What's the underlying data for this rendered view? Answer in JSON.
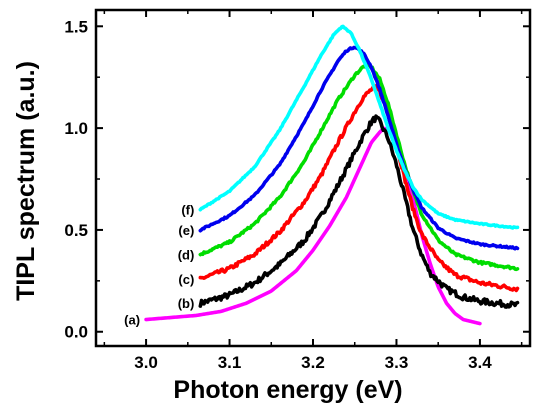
{
  "chart_data": {
    "type": "line",
    "title": "",
    "xlabel": "Photon energy (eV)",
    "ylabel": "TIPL spectrum (a.u.)",
    "xlim": [
      2.94,
      3.46
    ],
    "ylim": [
      -0.07,
      1.58
    ],
    "xticks": [
      3.0,
      3.1,
      3.2,
      3.3,
      3.4
    ],
    "xtick_labels": [
      "3.0",
      "3.1",
      "3.2",
      "3.3",
      "3.4"
    ],
    "yticks": [
      0.0,
      0.5,
      1.0,
      1.5
    ],
    "ytick_labels": [
      "0.0",
      "0.5",
      "1.0",
      "1.5"
    ],
    "grid": false,
    "series": [
      {
        "label": "(a)",
        "color": "#ff00ff",
        "noise": 0.0,
        "x": [
          3.0,
          3.03,
          3.06,
          3.09,
          3.12,
          3.15,
          3.18,
          3.2,
          3.22,
          3.24,
          3.25,
          3.26,
          3.27,
          3.28,
          3.285,
          3.29,
          3.3,
          3.31,
          3.32,
          3.33,
          3.34,
          3.35,
          3.36,
          3.37,
          3.38,
          3.39,
          3.4
        ],
        "y": [
          0.06,
          0.07,
          0.08,
          0.1,
          0.14,
          0.2,
          0.3,
          0.4,
          0.52,
          0.66,
          0.75,
          0.84,
          0.93,
          0.98,
          1.0,
          0.99,
          0.93,
          0.8,
          0.65,
          0.48,
          0.34,
          0.22,
          0.14,
          0.09,
          0.06,
          0.05,
          0.04
        ]
      },
      {
        "label": "(b)",
        "color": "#000000",
        "noise": 0.014,
        "x": [
          3.065,
          3.1,
          3.13,
          3.16,
          3.19,
          3.21,
          3.23,
          3.25,
          3.26,
          3.27,
          3.275,
          3.28,
          3.29,
          3.3,
          3.31,
          3.32,
          3.33,
          3.34,
          3.36,
          3.38,
          3.4,
          3.42,
          3.445
        ],
        "y": [
          0.14,
          0.18,
          0.24,
          0.33,
          0.45,
          0.57,
          0.72,
          0.88,
          0.96,
          1.03,
          1.05,
          1.03,
          0.95,
          0.82,
          0.66,
          0.5,
          0.38,
          0.29,
          0.21,
          0.17,
          0.15,
          0.14,
          0.13
        ]
      },
      {
        "label": "(c)",
        "color": "#ff0000",
        "noise": 0.01,
        "x": [
          3.065,
          3.1,
          3.13,
          3.16,
          3.19,
          3.21,
          3.23,
          3.25,
          3.26,
          3.27,
          3.275,
          3.28,
          3.29,
          3.3,
          3.31,
          3.32,
          3.33,
          3.35,
          3.37,
          3.4,
          3.445
        ],
        "y": [
          0.26,
          0.31,
          0.38,
          0.49,
          0.64,
          0.77,
          0.93,
          1.08,
          1.15,
          1.19,
          1.2,
          1.18,
          1.08,
          0.92,
          0.75,
          0.6,
          0.48,
          0.35,
          0.28,
          0.24,
          0.21
        ]
      },
      {
        "label": "(d)",
        "color": "#00dd00",
        "noise": 0.006,
        "x": [
          3.065,
          3.1,
          3.13,
          3.16,
          3.19,
          3.21,
          3.23,
          3.25,
          3.26,
          3.265,
          3.27,
          3.28,
          3.29,
          3.3,
          3.31,
          3.32,
          3.33,
          3.35,
          3.37,
          3.4,
          3.445
        ],
        "y": [
          0.38,
          0.44,
          0.53,
          0.66,
          0.84,
          0.99,
          1.14,
          1.26,
          1.3,
          1.31,
          1.3,
          1.24,
          1.12,
          0.97,
          0.82,
          0.69,
          0.58,
          0.45,
          0.38,
          0.34,
          0.31
        ]
      },
      {
        "label": "(e)",
        "color": "#0000ee",
        "noise": 0.004,
        "x": [
          3.065,
          3.1,
          3.13,
          3.16,
          3.19,
          3.21,
          3.23,
          3.24,
          3.25,
          3.26,
          3.27,
          3.28,
          3.29,
          3.3,
          3.31,
          3.32,
          3.33,
          3.35,
          3.37,
          3.4,
          3.445
        ],
        "y": [
          0.5,
          0.57,
          0.67,
          0.82,
          1.03,
          1.19,
          1.33,
          1.38,
          1.4,
          1.37,
          1.3,
          1.19,
          1.06,
          0.92,
          0.8,
          0.7,
          0.61,
          0.51,
          0.46,
          0.43,
          0.41
        ]
      },
      {
        "label": "(f)",
        "color": "#00ffff",
        "noise": 0.003,
        "x": [
          3.065,
          3.1,
          3.13,
          3.16,
          3.19,
          3.21,
          3.225,
          3.235,
          3.245,
          3.255,
          3.27,
          3.28,
          3.29,
          3.3,
          3.31,
          3.32,
          3.33,
          3.35,
          3.37,
          3.4,
          3.445
        ],
        "y": [
          0.6,
          0.69,
          0.81,
          0.99,
          1.21,
          1.36,
          1.46,
          1.5,
          1.47,
          1.39,
          1.24,
          1.12,
          1.0,
          0.89,
          0.79,
          0.71,
          0.65,
          0.58,
          0.55,
          0.53,
          0.51
        ]
      }
    ]
  }
}
